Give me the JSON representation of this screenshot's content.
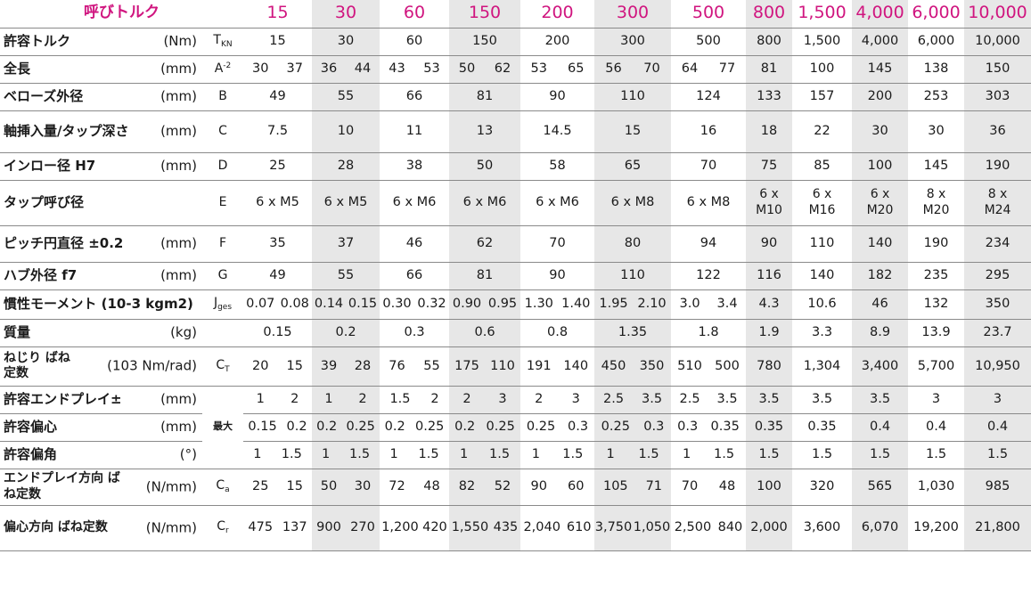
{
  "title": "呼びトルク",
  "sizes": [
    "15",
    "30",
    "60",
    "150",
    "200",
    "300",
    "500",
    "800",
    "1,500",
    "4,000",
    "6,000",
    "10,000"
  ],
  "rows": [
    {
      "label": "許容トルク",
      "unit": "(Nm)",
      "symbol": "T",
      "symbol_sub": "KN",
      "values": [
        [
          "15"
        ],
        [
          "30"
        ],
        [
          "60"
        ],
        [
          "150"
        ],
        [
          "200"
        ],
        [
          "300"
        ],
        [
          "500"
        ],
        [
          "800"
        ],
        [
          "1,500"
        ],
        [
          "4,000"
        ],
        [
          "6,000"
        ],
        [
          "10,000"
        ]
      ]
    },
    {
      "label": "全長",
      "unit": "(mm)",
      "symbol": "A",
      "symbol_sup": "-2",
      "values": [
        [
          "30",
          "37"
        ],
        [
          "36",
          "44"
        ],
        [
          "43",
          "53"
        ],
        [
          "50",
          "62"
        ],
        [
          "53",
          "65"
        ],
        [
          "56",
          "70"
        ],
        [
          "64",
          "77"
        ],
        [
          "81"
        ],
        [
          "100"
        ],
        [
          "145"
        ],
        [
          "138"
        ],
        [
          "150"
        ]
      ]
    },
    {
      "label": "ベローズ外径",
      "unit": "(mm)",
      "symbol": "B",
      "values": [
        [
          "49"
        ],
        [
          "55"
        ],
        [
          "66"
        ],
        [
          "81"
        ],
        [
          "90"
        ],
        [
          "110"
        ],
        [
          "124"
        ],
        [
          "133"
        ],
        [
          "157"
        ],
        [
          "200"
        ],
        [
          "253"
        ],
        [
          "303"
        ]
      ]
    },
    {
      "label": "軸挿入量/タップ深さ",
      "unit": "(mm)",
      "symbol": "C",
      "values": [
        [
          "7.5"
        ],
        [
          "10"
        ],
        [
          "11"
        ],
        [
          "13"
        ],
        [
          "14.5"
        ],
        [
          "15"
        ],
        [
          "16"
        ],
        [
          "18"
        ],
        [
          "22"
        ],
        [
          "30"
        ],
        [
          "30"
        ],
        [
          "36"
        ]
      ]
    },
    {
      "label": "インロー径 H7",
      "unit": "(mm)",
      "symbol": "D",
      "values": [
        [
          "25"
        ],
        [
          "28"
        ],
        [
          "38"
        ],
        [
          "50"
        ],
        [
          "58"
        ],
        [
          "65"
        ],
        [
          "70"
        ],
        [
          "75"
        ],
        [
          "85"
        ],
        [
          "100"
        ],
        [
          "145"
        ],
        [
          "190"
        ]
      ]
    },
    {
      "label": "タップ呼び径",
      "unit": "",
      "symbol": "E",
      "values": [
        [
          "6 x M5"
        ],
        [
          "6 x M5"
        ],
        [
          "6 x M6"
        ],
        [
          "6 x M6"
        ],
        [
          "6 x M6"
        ],
        [
          "6 x M8"
        ],
        [
          "6 x M8"
        ],
        [
          "6 x M10"
        ],
        [
          "6 x M16"
        ],
        [
          "6 x M20"
        ],
        [
          "8 x M20"
        ],
        [
          "8 x M24"
        ]
      ]
    },
    {
      "label": "ピッチ円直径 ±0.2",
      "unit": "(mm)",
      "symbol": "F",
      "values": [
        [
          "35"
        ],
        [
          "37"
        ],
        [
          "46"
        ],
        [
          "62"
        ],
        [
          "70"
        ],
        [
          "80"
        ],
        [
          "94"
        ],
        [
          "90"
        ],
        [
          "110"
        ],
        [
          "140"
        ],
        [
          "190"
        ],
        [
          "234"
        ]
      ]
    },
    {
      "label": "ハブ外径 f7",
      "unit": "(mm)",
      "symbol": "G",
      "values": [
        [
          "49"
        ],
        [
          "55"
        ],
        [
          "66"
        ],
        [
          "81"
        ],
        [
          "90"
        ],
        [
          "110"
        ],
        [
          "122"
        ],
        [
          "116"
        ],
        [
          "140"
        ],
        [
          "182"
        ],
        [
          "235"
        ],
        [
          "295"
        ]
      ]
    },
    {
      "label": "慣性モーメント (10-3 kgm2)",
      "unit": "",
      "symbol": "J",
      "symbol_sub": "ges",
      "values": [
        [
          "0.07",
          "0.08"
        ],
        [
          "0.14",
          "0.15"
        ],
        [
          "0.30",
          "0.32"
        ],
        [
          "0.90",
          "0.95"
        ],
        [
          "1.30",
          "1.40"
        ],
        [
          "1.95",
          "2.10"
        ],
        [
          "3.0",
          "3.4"
        ],
        [
          "4.3"
        ],
        [
          "10.6"
        ],
        [
          "46"
        ],
        [
          "132"
        ],
        [
          "350"
        ]
      ]
    },
    {
      "label": "質量",
      "unit": "(kg)",
      "symbol": "",
      "values": [
        [
          "0.15"
        ],
        [
          "0.2"
        ],
        [
          "0.3"
        ],
        [
          "0.6"
        ],
        [
          "0.8"
        ],
        [
          "1.35"
        ],
        [
          "1.8"
        ],
        [
          "1.9"
        ],
        [
          "3.3"
        ],
        [
          "8.9"
        ],
        [
          "13.9"
        ],
        [
          "23.7"
        ]
      ]
    },
    {
      "label": "ねじり ばね定数",
      "unit": "(103 Nm/rad)",
      "symbol": "C",
      "symbol_sub": "T",
      "values": [
        [
          "20",
          "15"
        ],
        [
          "39",
          "28"
        ],
        [
          "76",
          "55"
        ],
        [
          "175",
          "110"
        ],
        [
          "191",
          "140"
        ],
        [
          "450",
          "350"
        ],
        [
          "510",
          "500"
        ],
        [
          "780"
        ],
        [
          "1,304"
        ],
        [
          "3,400"
        ],
        [
          "5,700"
        ],
        [
          "10,950"
        ]
      ]
    },
    {
      "label": "許容エンドプレイ±",
      "unit": "(mm)",
      "symbol": "最大",
      "values": [
        [
          "1",
          "2"
        ],
        [
          "1",
          "2"
        ],
        [
          "1.5",
          "2"
        ],
        [
          "2",
          "3"
        ],
        [
          "2",
          "3"
        ],
        [
          "2.5",
          "3.5"
        ],
        [
          "2.5",
          "3.5"
        ],
        [
          "3.5"
        ],
        [
          "3.5"
        ],
        [
          "3.5"
        ],
        [
          "3"
        ],
        [
          "3"
        ]
      ]
    },
    {
      "label": "許容偏心",
      "unit": "(mm)",
      "symbol": "",
      "values": [
        [
          "0.15",
          "0.2"
        ],
        [
          "0.2",
          "0.25"
        ],
        [
          "0.2",
          "0.25"
        ],
        [
          "0.2",
          "0.25"
        ],
        [
          "0.25",
          "0.3"
        ],
        [
          "0.25",
          "0.3"
        ],
        [
          "0.3",
          "0.35"
        ],
        [
          "0.35"
        ],
        [
          "0.35"
        ],
        [
          "0.4"
        ],
        [
          "0.4"
        ],
        [
          "0.4"
        ]
      ]
    },
    {
      "label": "許容偏角",
      "unit": "(°)",
      "symbol": "",
      "values": [
        [
          "1",
          "1.5"
        ],
        [
          "1",
          "1.5"
        ],
        [
          "1",
          "1.5"
        ],
        [
          "1",
          "1.5"
        ],
        [
          "1",
          "1.5"
        ],
        [
          "1",
          "1.5"
        ],
        [
          "1",
          "1.5"
        ],
        [
          "1.5"
        ],
        [
          "1.5"
        ],
        [
          "1.5"
        ],
        [
          "1.5"
        ],
        [
          "1.5"
        ]
      ]
    },
    {
      "label": "エンドプレイ方向 ばね定数",
      "unit": "(N/mm)",
      "symbol": "C",
      "symbol_sub": "a",
      "values": [
        [
          "25",
          "15"
        ],
        [
          "50",
          "30"
        ],
        [
          "72",
          "48"
        ],
        [
          "82",
          "52"
        ],
        [
          "90",
          "60"
        ],
        [
          "105",
          "71"
        ],
        [
          "70",
          "48"
        ],
        [
          "100"
        ],
        [
          "320"
        ],
        [
          "565"
        ],
        [
          "1,030"
        ],
        [
          "985"
        ]
      ]
    },
    {
      "label": "偏心方向 ばね定数",
      "unit": "(N/mm)",
      "symbol": "C",
      "symbol_sub": "r",
      "values": [
        [
          "475",
          "137"
        ],
        [
          "900",
          "270"
        ],
        [
          "1,200",
          "420"
        ],
        [
          "1,550",
          "435"
        ],
        [
          "2,040",
          "610"
        ],
        [
          "3,750",
          "1,050"
        ],
        [
          "2,500",
          "840"
        ],
        [
          "2,000"
        ],
        [
          "3,600"
        ],
        [
          "6,070"
        ],
        [
          "19,200"
        ],
        [
          "21,800"
        ]
      ]
    }
  ],
  "colors": {
    "accent": "#d0157f",
    "shade": "#e7e7e7",
    "rule": "#8a8a8a"
  }
}
